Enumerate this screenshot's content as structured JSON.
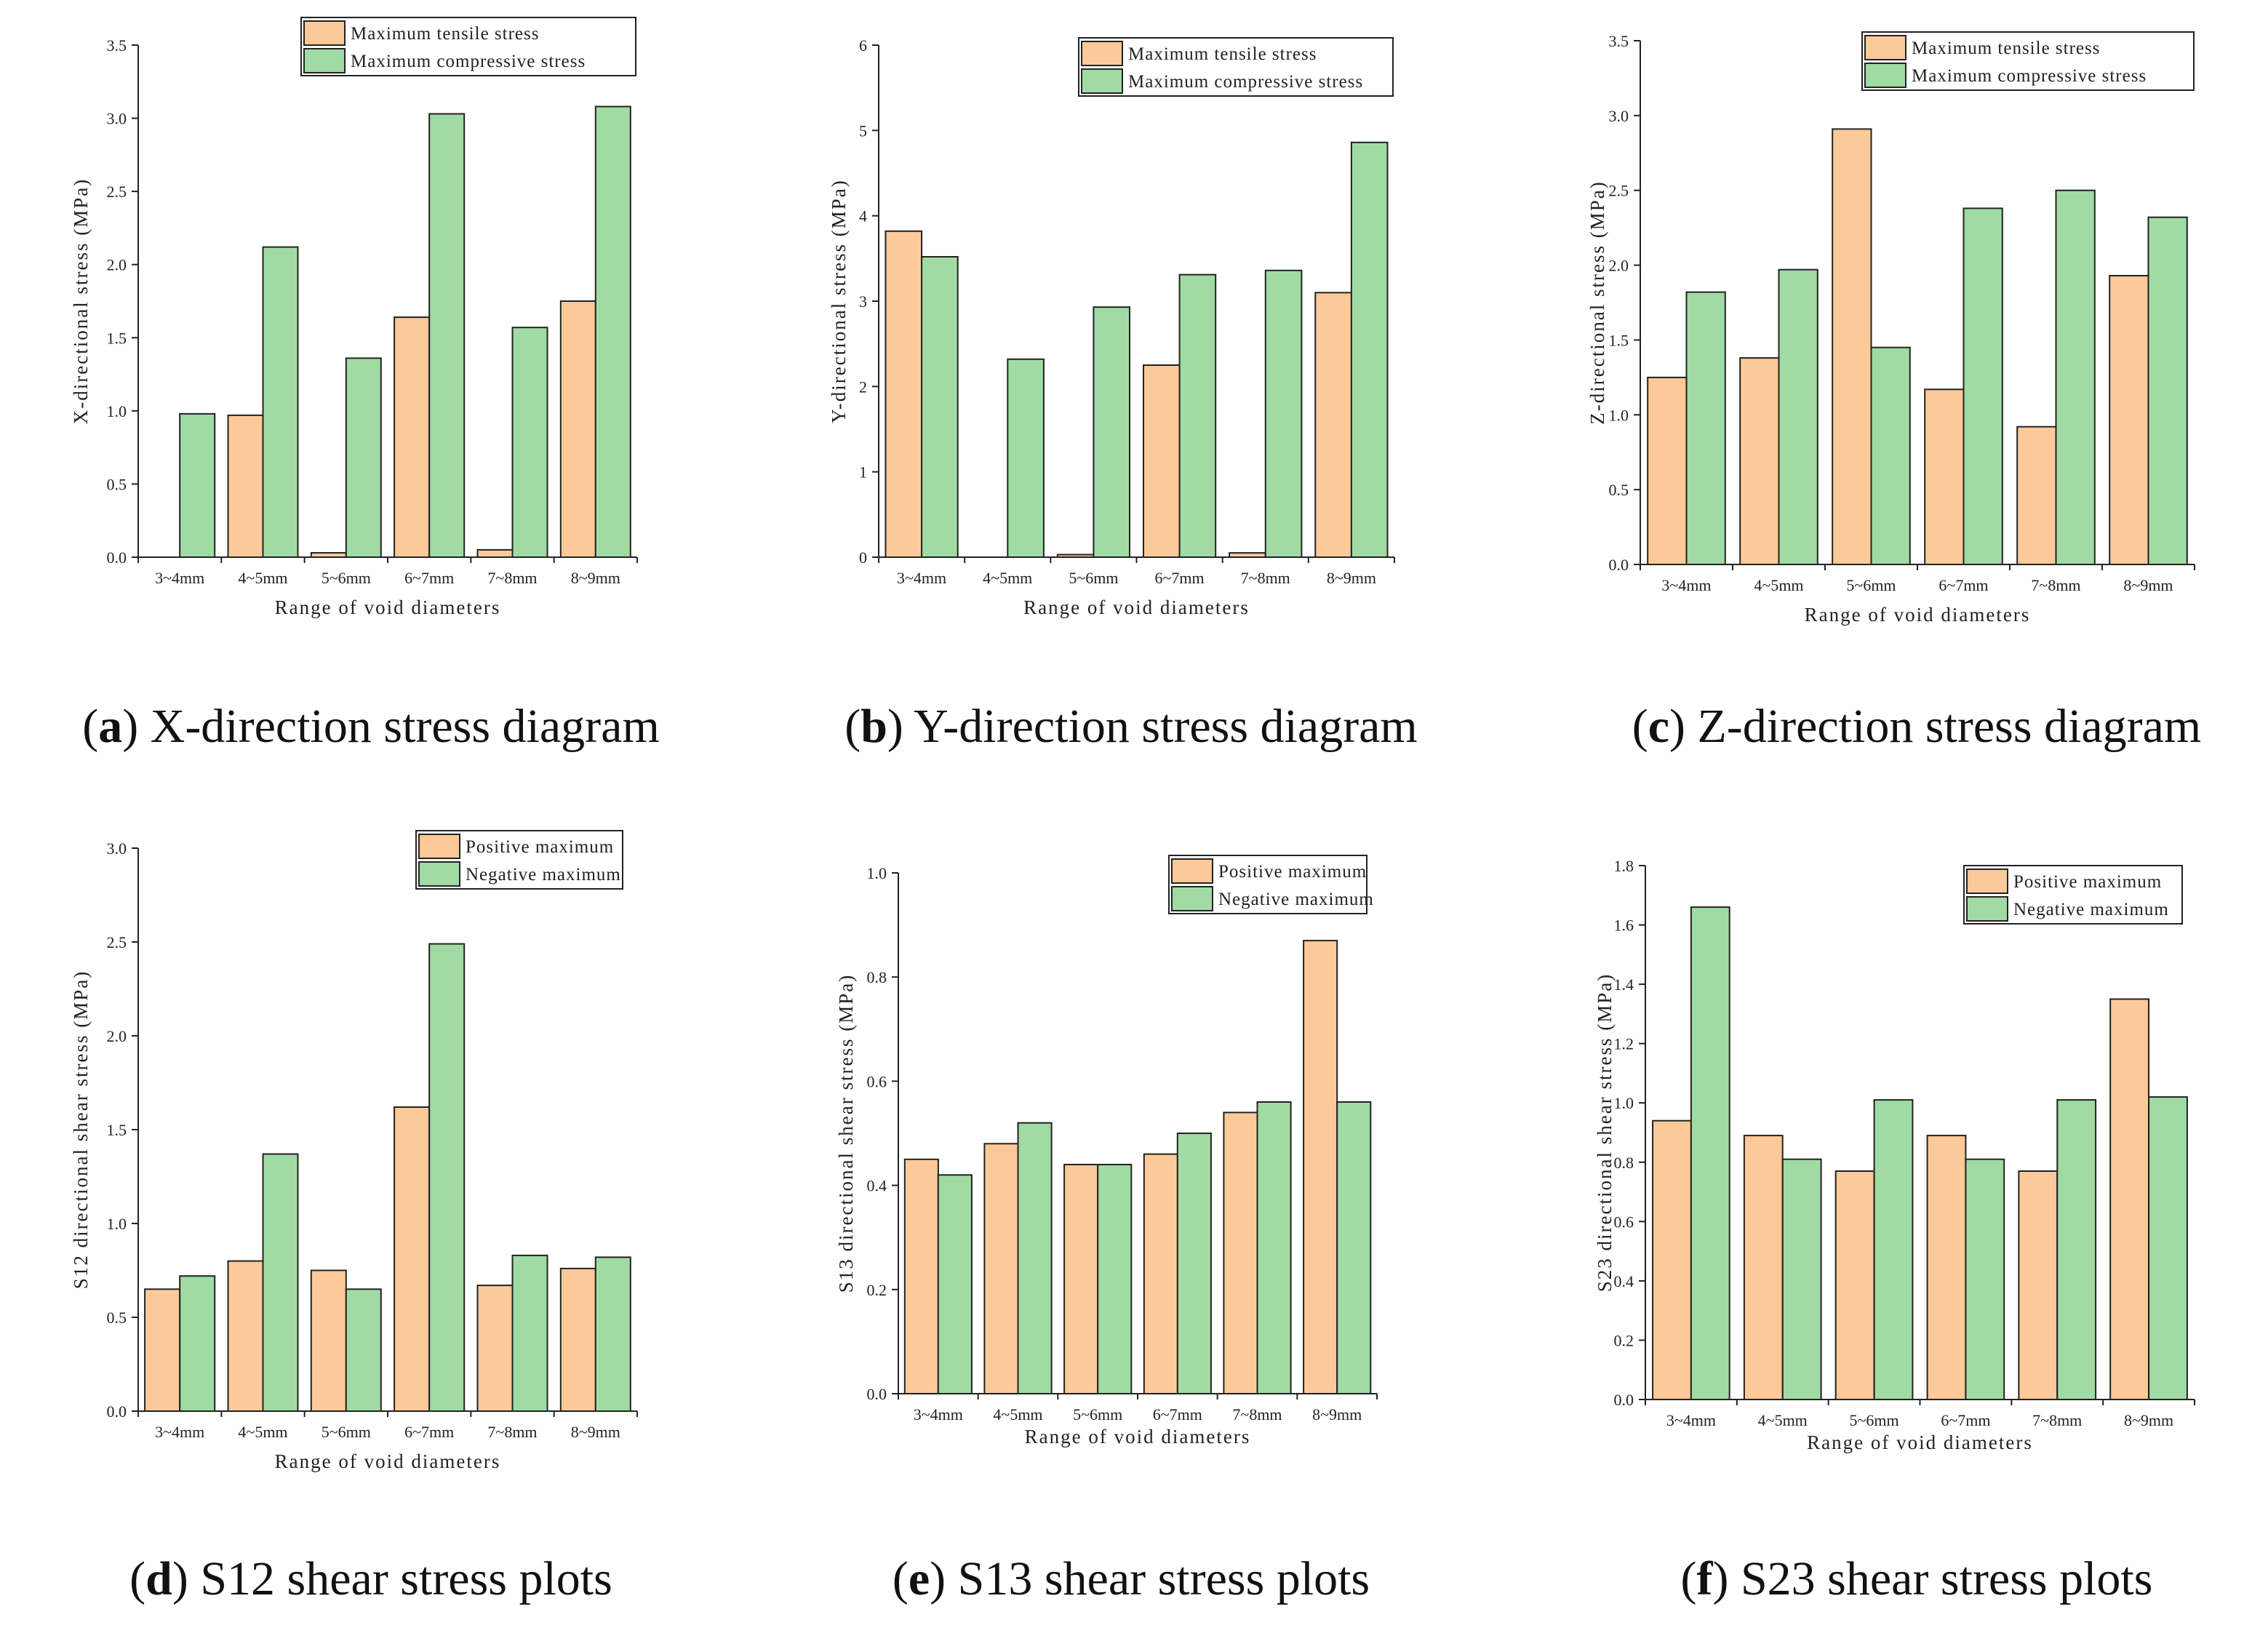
{
  "colors": {
    "series_a": "#FDC998",
    "series_b": "#A0DBA3",
    "axis": "#222222"
  },
  "chart_data": [
    {
      "type": "bar",
      "letter": "a",
      "caption": "X-direction stress diagram",
      "categories": [
        "3~4mm",
        "4~5mm",
        "5~6mm",
        "6~7mm",
        "7~8mm",
        "8~9mm"
      ],
      "series": [
        {
          "name": "Maximum tensile stress",
          "values": [
            0,
            0.97,
            0.03,
            1.64,
            0.05,
            1.75
          ]
        },
        {
          "name": "Maximum compressive stress",
          "values": [
            0.98,
            2.12,
            1.36,
            3.03,
            1.57,
            3.08
          ]
        }
      ],
      "xlabel": "Range of void diameters",
      "ylabel": "X-directional stress (MPa)",
      "ylim": [
        0,
        3.5
      ],
      "yticks": [
        "0.0",
        "0.5",
        "1.0",
        "1.5",
        "2.0",
        "2.5",
        "3.0",
        "3.5"
      ],
      "legend": "top-right"
    },
    {
      "type": "bar",
      "letter": "b",
      "caption": "Y-direction stress diagram",
      "categories": [
        "3~4mm",
        "4~5mm",
        "5~6mm",
        "6~7mm",
        "7~8mm",
        "8~9mm"
      ],
      "series": [
        {
          "name": "Maximum tensile stress",
          "values": [
            3.82,
            0,
            0.03,
            2.25,
            0.05,
            3.1
          ]
        },
        {
          "name": "Maximum compressive stress",
          "values": [
            3.52,
            2.32,
            2.93,
            3.31,
            3.36,
            4.86
          ]
        }
      ],
      "xlabel": "Range of void diameters",
      "ylabel": "Y-directional stress (MPa)",
      "ylim": [
        0,
        6
      ],
      "yticks": [
        "0",
        "1",
        "2",
        "3",
        "4",
        "5",
        "6"
      ],
      "legend": "top-right"
    },
    {
      "type": "bar",
      "letter": "c",
      "caption": "Z-direction stress diagram",
      "categories": [
        "3~4mm",
        "4~5mm",
        "5~6mm",
        "6~7mm",
        "7~8mm",
        "8~9mm"
      ],
      "series": [
        {
          "name": "Maximum tensile stress",
          "values": [
            1.25,
            1.38,
            2.91,
            1.17,
            0.92,
            1.93
          ]
        },
        {
          "name": "Maximum compressive stress",
          "values": [
            1.82,
            1.97,
            1.45,
            2.38,
            2.5,
            2.32
          ]
        }
      ],
      "xlabel": "Range of void diameters",
      "ylabel": "Z-directional stress (MPa)",
      "ylim": [
        0,
        3.5
      ],
      "yticks": [
        "0.0",
        "0.5",
        "1.0",
        "1.5",
        "2.0",
        "2.5",
        "3.0",
        "3.5"
      ],
      "legend": "top-right"
    },
    {
      "type": "bar",
      "letter": "d",
      "caption": "S12 shear stress plots",
      "categories": [
        "3~4mm",
        "4~5mm",
        "5~6mm",
        "6~7mm",
        "7~8mm",
        "8~9mm"
      ],
      "series": [
        {
          "name": "Positive maximum",
          "values": [
            0.65,
            0.8,
            0.75,
            1.62,
            0.67,
            0.76
          ]
        },
        {
          "name": "Negative maximum",
          "values": [
            0.72,
            1.37,
            0.65,
            2.49,
            0.83,
            0.82
          ]
        }
      ],
      "xlabel": "Range of void diameters",
      "ylabel": "S12 directional shear stress (MPa)",
      "ylim": [
        0,
        3.0
      ],
      "yticks": [
        "0.0",
        "0.5",
        "1.0",
        "1.5",
        "2.0",
        "2.5",
        "3.0"
      ],
      "legend": "top-right"
    },
    {
      "type": "bar",
      "letter": "e",
      "caption": "S13 shear stress plots",
      "categories": [
        "3~4mm",
        "4~5mm",
        "5~6mm",
        "6~7mm",
        "7~8mm",
        "8~9mm"
      ],
      "series": [
        {
          "name": "Positive maximum",
          "values": [
            0.45,
            0.48,
            0.44,
            0.46,
            0.54,
            0.87
          ]
        },
        {
          "name": "Negative maximum",
          "values": [
            0.42,
            0.52,
            0.44,
            0.5,
            0.56,
            0.56
          ]
        }
      ],
      "xlabel": "Range of void diameters",
      "ylabel": "S13 directional shear stress (MPa)",
      "ylim": [
        0,
        1.0
      ],
      "yticks": [
        "0.0",
        "0.2",
        "0.4",
        "0.6",
        "0.8",
        "1.0"
      ],
      "legend": "top-right"
    },
    {
      "type": "bar",
      "letter": "f",
      "caption": "S23 shear stress plots",
      "categories": [
        "3~4mm",
        "4~5mm",
        "5~6mm",
        "6~7mm",
        "7~8mm",
        "8~9mm"
      ],
      "series": [
        {
          "name": "Positive maximum",
          "values": [
            0.94,
            0.89,
            0.77,
            0.89,
            0.77,
            1.35
          ]
        },
        {
          "name": "Negative maximum",
          "values": [
            1.66,
            0.81,
            1.01,
            0.81,
            1.01,
            1.02
          ]
        }
      ],
      "xlabel": "Range of void diameters",
      "ylabel": "S23 directional shear stress (MPa)",
      "ylim": [
        0,
        1.8
      ],
      "yticks": [
        "0.0",
        "0.2",
        "0.4",
        "0.6",
        "0.8",
        "1.0",
        "1.2",
        "1.4",
        "1.6",
        "1.8"
      ],
      "legend": "top-right"
    }
  ]
}
